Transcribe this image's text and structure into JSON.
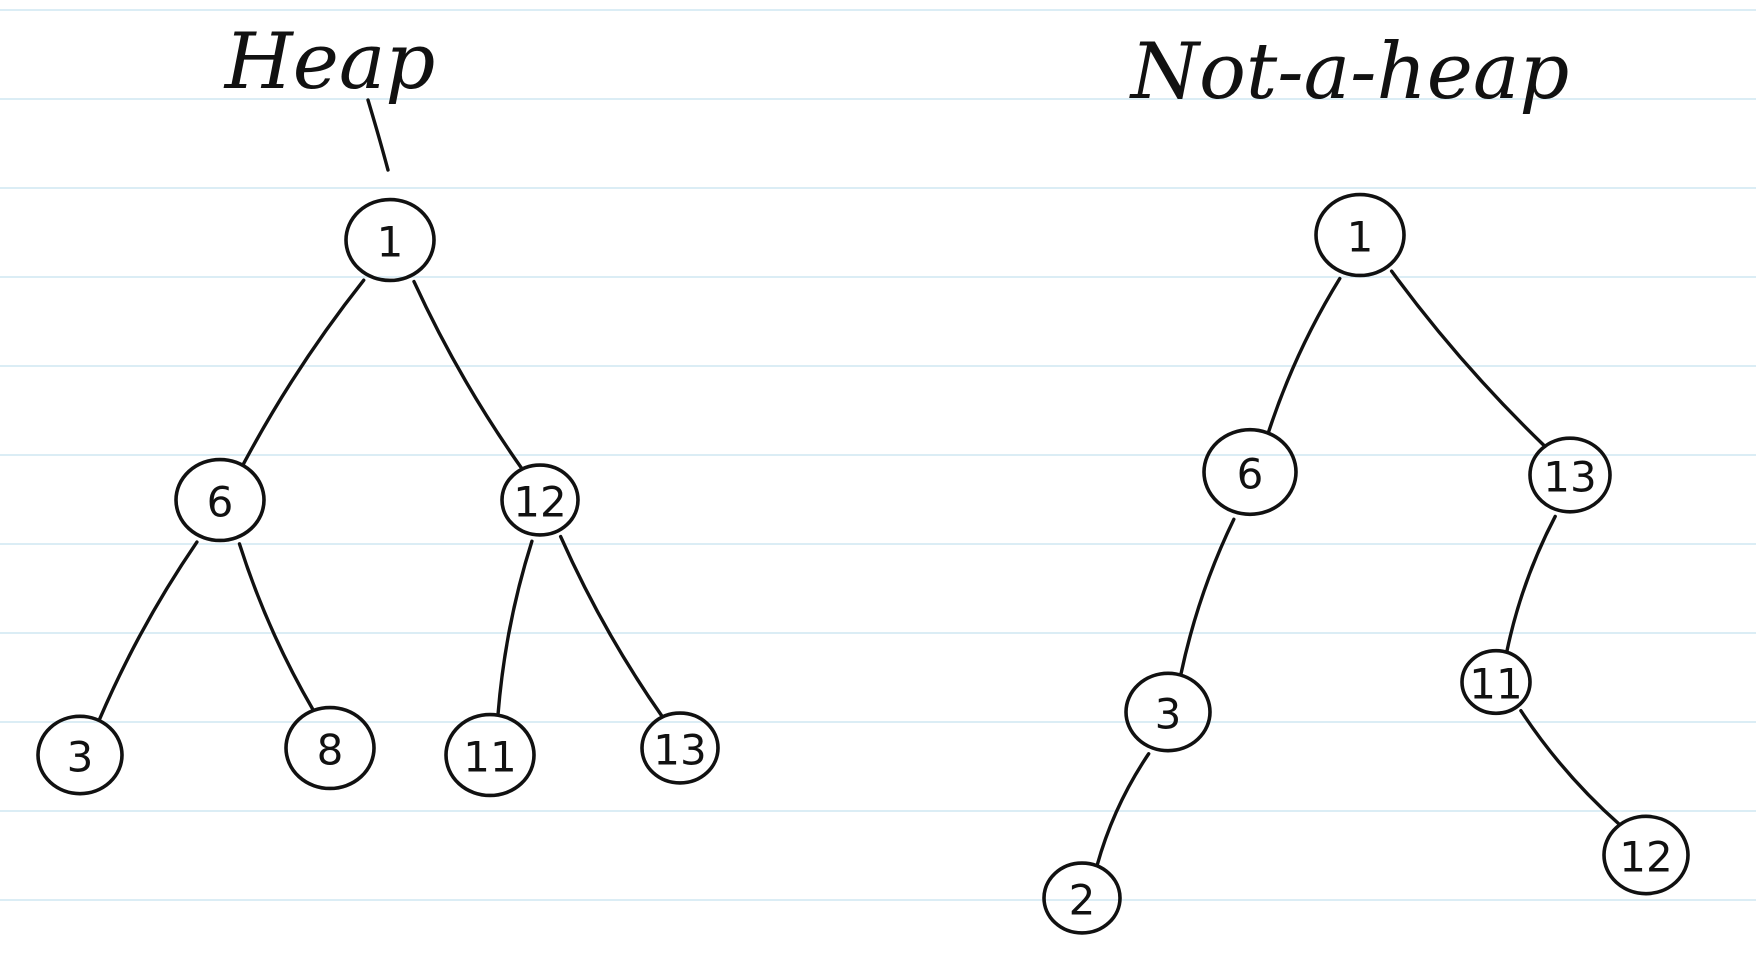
{
  "colors": {
    "ink": "#111111",
    "ruling": "#cfe7f2",
    "paper": "#ffffff"
  },
  "diagrams": [
    {
      "title": "Heap",
      "nodes": [
        {
          "id": "h1",
          "label": "1"
        },
        {
          "id": "h6",
          "label": "6"
        },
        {
          "id": "h12",
          "label": "12"
        },
        {
          "id": "h3",
          "label": "3"
        },
        {
          "id": "h8",
          "label": "8"
        },
        {
          "id": "h11",
          "label": "11"
        },
        {
          "id": "h13",
          "label": "13"
        }
      ],
      "edges": [
        [
          "h1",
          "h6"
        ],
        [
          "h1",
          "h12"
        ],
        [
          "h6",
          "h3"
        ],
        [
          "h6",
          "h8"
        ],
        [
          "h12",
          "h11"
        ],
        [
          "h12",
          "h13"
        ]
      ]
    },
    {
      "title": "Not-a-heap",
      "nodes": [
        {
          "id": "n1",
          "label": "1"
        },
        {
          "id": "n6",
          "label": "6"
        },
        {
          "id": "n13",
          "label": "13"
        },
        {
          "id": "n3",
          "label": "3"
        },
        {
          "id": "n11",
          "label": "11"
        },
        {
          "id": "n2",
          "label": "2"
        },
        {
          "id": "n12",
          "label": "12"
        }
      ],
      "edges": [
        [
          "n1",
          "n6"
        ],
        [
          "n1",
          "n13"
        ],
        [
          "n6",
          "n3"
        ],
        [
          "n3",
          "n2"
        ],
        [
          "n13",
          "n11"
        ],
        [
          "n11",
          "n12"
        ]
      ]
    }
  ]
}
